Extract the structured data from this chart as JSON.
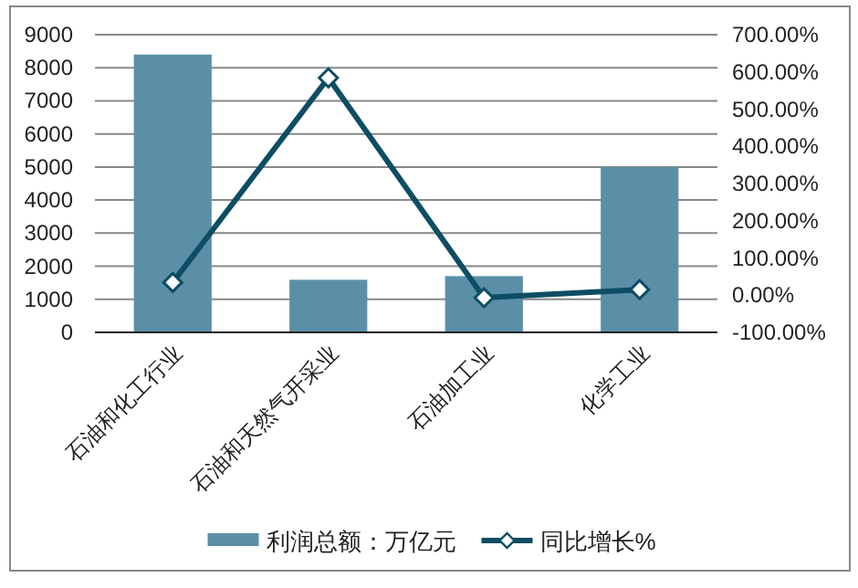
{
  "chart_data": {
    "type": "bar",
    "categories": [
      "石油和化工行业",
      "石油和天然气开采业",
      "石油加工业",
      "化学工业"
    ],
    "series": [
      {
        "name": "利润总额：万亿元",
        "color": "#5b8fa8",
        "values": [
          8400,
          1590,
          1700,
          5000
        ]
      },
      {
        "name": "同比增长%",
        "type": "line",
        "axis": "y2",
        "color": "#0e4d63",
        "marker": "diamond",
        "values": [
          34,
          584,
          -7,
          15
        ]
      }
    ],
    "ylim": [
      0,
      9000
    ],
    "yticks": [
      0,
      1000,
      2000,
      3000,
      4000,
      5000,
      6000,
      7000,
      8000,
      9000
    ],
    "y2lim": [
      -100,
      700
    ],
    "y2ticks": [
      {
        "value": -100,
        "label": "-100.00%"
      },
      {
        "value": 0,
        "label": "0.00%"
      },
      {
        "value": 100,
        "label": "100.00%"
      },
      {
        "value": 200,
        "label": "200.00%"
      },
      {
        "value": 300,
        "label": "300.00%"
      },
      {
        "value": 400,
        "label": "400.00%"
      },
      {
        "value": 500,
        "label": "500.00%"
      },
      {
        "value": 600,
        "label": "600.00%"
      },
      {
        "value": 700,
        "label": "700.00%"
      }
    ],
    "grid": true,
    "legend": "bottom"
  }
}
